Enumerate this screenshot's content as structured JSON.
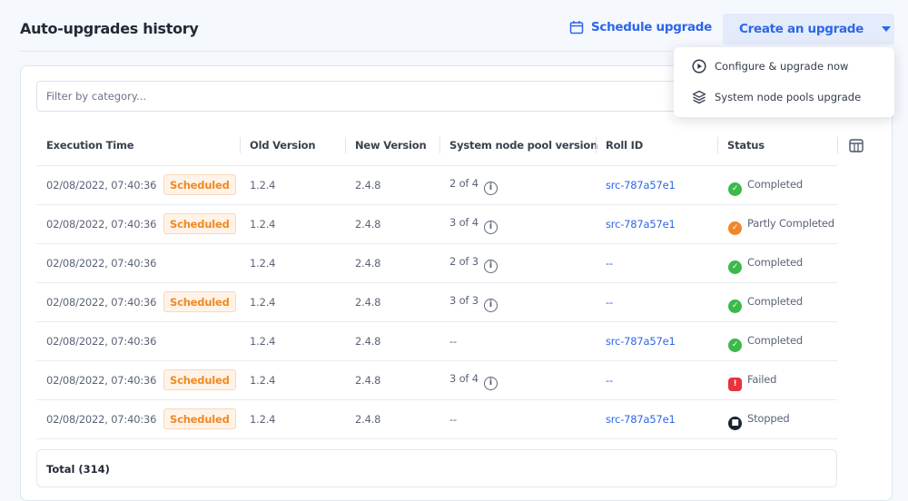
{
  "header": {
    "title": "Auto-upgrades history",
    "schedule_label": "Schedule upgrade",
    "create_label": "Create an upgrade"
  },
  "menu": {
    "items": [
      {
        "label": "Configure & upgrade now",
        "icon": "play-circle-icon"
      },
      {
        "label": "System node pools upgrade",
        "icon": "layers-icon"
      }
    ]
  },
  "filter": {
    "placeholder": "Filter by category..."
  },
  "table": {
    "columns": [
      "Execution Time",
      "Old Version",
      "New Version",
      "System node pool version",
      "Roll ID",
      "Status"
    ],
    "rows": [
      {
        "time": "02/08/2022, 07:40:36",
        "badge": "Scheduled",
        "old": "1.2.4",
        "new": "2.4.8",
        "pool": "2 of 4",
        "roll": "src-787a57e1",
        "status": "Completed"
      },
      {
        "time": "02/08/2022, 07:40:36",
        "badge": "Scheduled",
        "old": "1.2.4",
        "new": "2.4.8",
        "pool": "3 of 4",
        "roll": "src-787a57e1",
        "status": "Partly Completed"
      },
      {
        "time": "02/08/2022, 07:40:36",
        "badge": "",
        "old": "1.2.4",
        "new": "2.4.8",
        "pool": "2 of 3",
        "roll": "--",
        "status": "Completed"
      },
      {
        "time": "02/08/2022, 07:40:36",
        "badge": "Scheduled",
        "old": "1.2.4",
        "new": "2.4.8",
        "pool": "3 of 3",
        "roll": "--",
        "status": "Completed"
      },
      {
        "time": "02/08/2022, 07:40:36",
        "badge": "",
        "old": "1.2.4",
        "new": "2.4.8",
        "pool": "--",
        "roll": "src-787a57e1",
        "status": "Completed"
      },
      {
        "time": "02/08/2022, 07:40:36",
        "badge": "Scheduled",
        "old": "1.2.4",
        "new": "2.4.8",
        "pool": "3 of 4",
        "roll": "--",
        "status": "Failed"
      },
      {
        "time": "02/08/2022, 07:40:36",
        "badge": "Scheduled",
        "old": "1.2.4",
        "new": "2.4.8",
        "pool": "--",
        "roll": "src-787a57e1",
        "status": "Stopped"
      }
    ],
    "total": "Total (314)"
  },
  "status_colors": {
    "Completed": "#3cb94a",
    "Partly Completed": "#f0862a",
    "Failed": "#e8323c",
    "Stopped": "#1b2332"
  },
  "accent": "#2e66e8"
}
